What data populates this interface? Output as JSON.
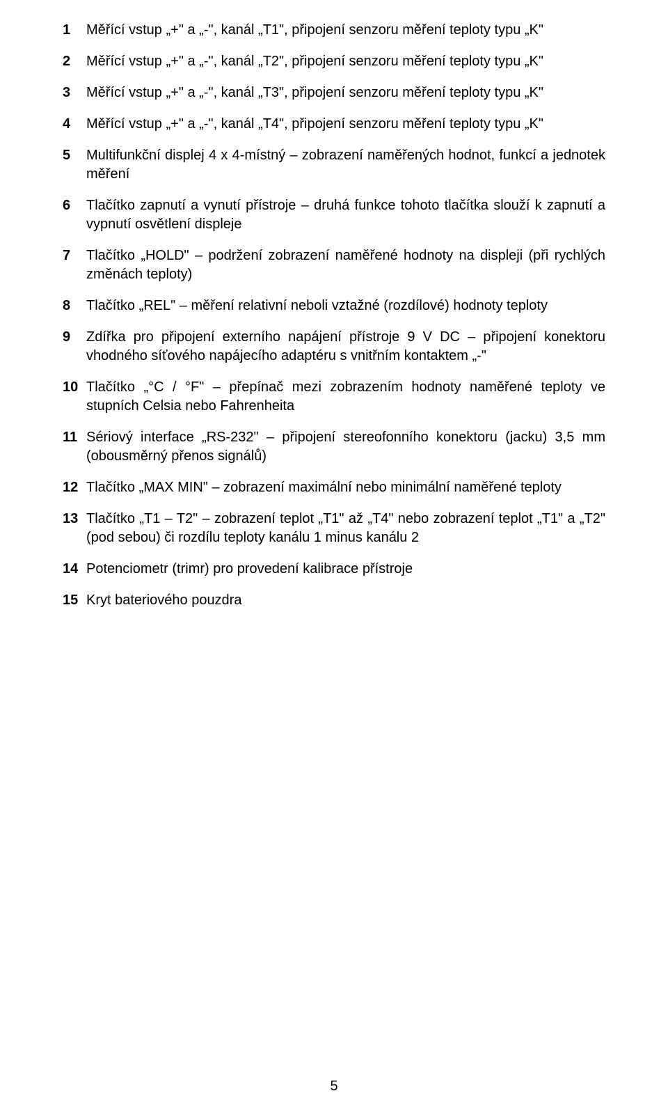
{
  "page_number": "5",
  "items": [
    {
      "n": "1",
      "text": "Měřící vstup „+\" a „-\", kanál „T1\", připojení senzoru měření teploty typu „K\""
    },
    {
      "n": "2",
      "text": "Měřící vstup „+\" a „-\", kanál „T2\", připojení senzoru měření teploty typu „K\""
    },
    {
      "n": "3",
      "text": "Měřící vstup „+\" a „-\", kanál „T3\", připojení senzoru měření teploty typu „K\""
    },
    {
      "n": "4",
      "text": "Měřící vstup „+\" a „-\", kanál „T4\", připojení senzoru měření teploty typu „K\""
    },
    {
      "n": "5",
      "text": "Multifunkční displej 4 x 4-místný – zobrazení naměřených hodnot, funkcí a jednotek měření"
    },
    {
      "n": "6",
      "text": "Tlačítko zapnutí a vynutí přístroje – druhá funkce tohoto tlačítka slouží k zapnutí a vypnutí osvětlení displeje"
    },
    {
      "n": "7",
      "text": "Tlačítko „HOLD\" – podržení zobrazení naměřené hodnoty na displeji (při rychlých změnách teploty)"
    },
    {
      "n": "8",
      "text": "Tlačítko „REL\" – měření relativní neboli vztažné (rozdílové) hodnoty teploty"
    },
    {
      "n": "9",
      "text": "Zdířka pro připojení externího napájení přístroje 9 V DC – připojení konektoru vhodného síťového napájecího adaptéru s vnitřním kontaktem  „-\""
    },
    {
      "n": "10",
      "text": "Tlačítko „°C / °F\" – přepínač mezi zobrazením hodnoty naměřené teploty ve stupních Celsia nebo Fahrenheita"
    },
    {
      "n": "11",
      "text": "Sériový interface „RS-232\" – připojení stereofonního konektoru (jacku) 3,5 mm (obousměrný přenos signálů)"
    },
    {
      "n": "12",
      "text": "Tlačítko „MAX MIN\" – zobrazení maximální nebo minimální naměřené teploty"
    },
    {
      "n": "13",
      "text": "Tlačítko „T1 – T2\" – zobrazení teplot „T1\" až „T4\" nebo zobrazení teplot „T1\" a „T2\" (pod sebou)  či rozdílu teploty kanálu 1 minus kanálu 2"
    },
    {
      "n": "14",
      "text": "Potenciometr (trimr) pro provedení kalibrace přístroje"
    },
    {
      "n": "15",
      "text": "Kryt bateriového pouzdra"
    }
  ]
}
